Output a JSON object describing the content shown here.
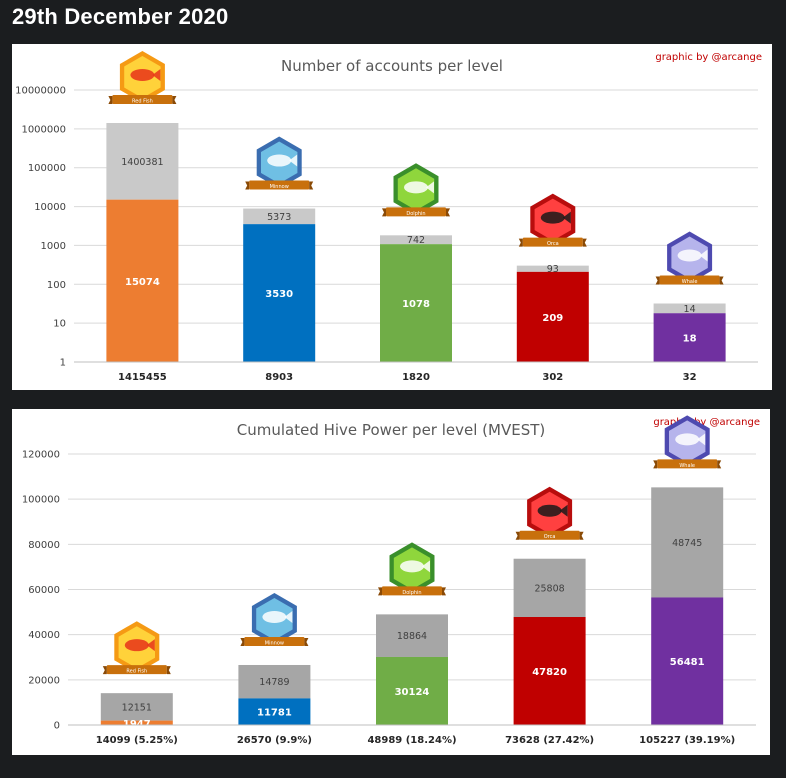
{
  "page": {
    "date_title": "29th December 2020"
  },
  "chart_data": [
    {
      "type": "bar",
      "stacked": true,
      "title": "Number of accounts per level",
      "credit": "graphic by @arcange",
      "yscale": "log",
      "ylim": [
        1,
        10000000
      ],
      "yticks": [
        "1",
        "10",
        "100",
        "1000",
        "10000",
        "100000",
        "1000000",
        "10000000"
      ],
      "grid": true,
      "categories": [
        "1415455",
        "8903",
        "1820",
        "302",
        "32"
      ],
      "badges": [
        "Red Fish",
        "Minnow",
        "Dolphin",
        "Orca",
        "Whale"
      ],
      "colors": [
        "#ed7d31",
        "#0070c0",
        "#70ad47",
        "#c00000",
        "#7030a0"
      ],
      "series": [
        {
          "values": [
            15074,
            3530,
            1078,
            209,
            18
          ]
        },
        {
          "values": [
            1400381,
            5373,
            742,
            93,
            14
          ],
          "color": "#c9c9c9"
        }
      ]
    },
    {
      "type": "bar",
      "stacked": true,
      "title": "Cumulated Hive Power per level (MVEST)",
      "credit": "graphic by @arcange",
      "ylim": [
        0,
        120000
      ],
      "yticks": [
        "0",
        "20000",
        "40000",
        "60000",
        "80000",
        "100000",
        "120000"
      ],
      "grid": true,
      "categories": [
        "14099 (5.25%)",
        "26570 (9.9%)",
        "48989 (18.24%)",
        "73628 (27.42%)",
        "105227 (39.19%)"
      ],
      "badges": [
        "Red Fish",
        "Minnow",
        "Dolphin",
        "Orca",
        "Whale"
      ],
      "colors": [
        "#ed7d31",
        "#0070c0",
        "#70ad47",
        "#c00000",
        "#7030a0"
      ],
      "series": [
        {
          "values": [
            1947,
            11781,
            30124,
            47820,
            56481
          ]
        },
        {
          "values": [
            12151,
            14789,
            18864,
            25808,
            48745
          ],
          "color": "#a6a6a6"
        }
      ]
    }
  ]
}
